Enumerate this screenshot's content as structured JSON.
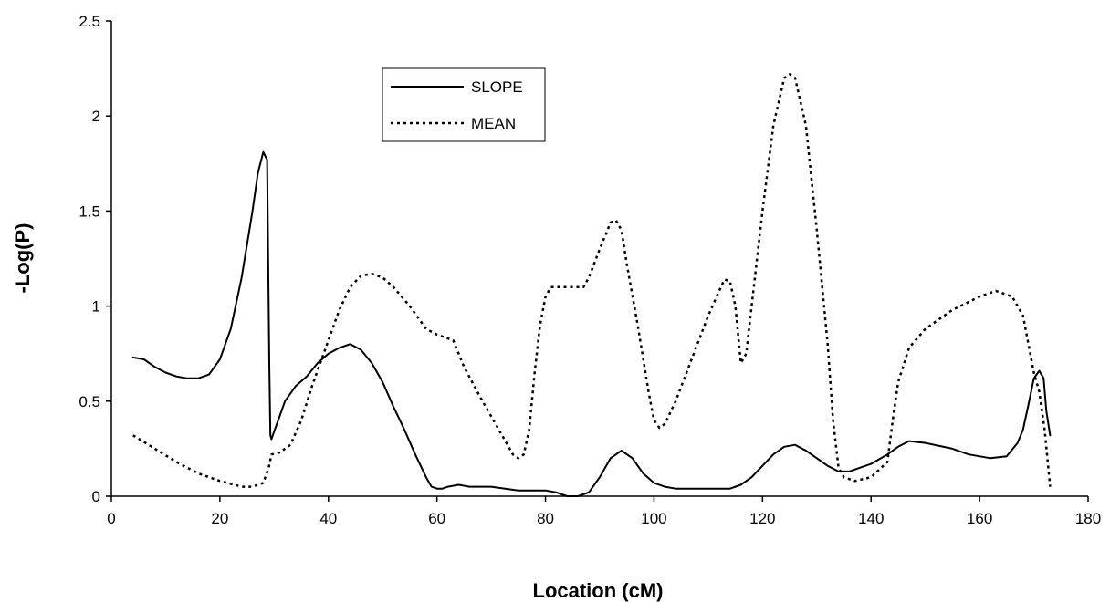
{
  "chart_data": {
    "type": "line",
    "title": "",
    "xlabel": "Location (cM)",
    "ylabel": "-Log(P)",
    "xlim": [
      0,
      180
    ],
    "ylim": [
      0,
      2.5
    ],
    "xticks": [
      "0",
      "20",
      "40",
      "60",
      "80",
      "100",
      "120",
      "140",
      "160",
      "180"
    ],
    "yticks": [
      "0",
      "0.5",
      "1",
      "1.5",
      "2",
      "2.5"
    ],
    "grid": false,
    "legend_position": "top-center",
    "series": [
      {
        "name": "SLOPE",
        "style": "solid",
        "color": "#000000",
        "points": [
          [
            4,
            0.73
          ],
          [
            6,
            0.72
          ],
          [
            8,
            0.68
          ],
          [
            10,
            0.65
          ],
          [
            12,
            0.63
          ],
          [
            14,
            0.62
          ],
          [
            16,
            0.62
          ],
          [
            18,
            0.64
          ],
          [
            20,
            0.72
          ],
          [
            22,
            0.88
          ],
          [
            24,
            1.15
          ],
          [
            26,
            1.5
          ],
          [
            27,
            1.7
          ],
          [
            28,
            1.81
          ],
          [
            28.7,
            1.77
          ],
          [
            29.1,
            0.7
          ],
          [
            29.3,
            0.32
          ],
          [
            29.5,
            0.3
          ],
          [
            30,
            0.34
          ],
          [
            31,
            0.42
          ],
          [
            32,
            0.5
          ],
          [
            34,
            0.58
          ],
          [
            36,
            0.63
          ],
          [
            38,
            0.7
          ],
          [
            40,
            0.75
          ],
          [
            42,
            0.78
          ],
          [
            44,
            0.8
          ],
          [
            46,
            0.77
          ],
          [
            48,
            0.7
          ],
          [
            50,
            0.6
          ],
          [
            52,
            0.47
          ],
          [
            54,
            0.35
          ],
          [
            56,
            0.22
          ],
          [
            58,
            0.1
          ],
          [
            59,
            0.05
          ],
          [
            60,
            0.04
          ],
          [
            61,
            0.04
          ],
          [
            62,
            0.05
          ],
          [
            64,
            0.06
          ],
          [
            66,
            0.05
          ],
          [
            70,
            0.05
          ],
          [
            75,
            0.03
          ],
          [
            80,
            0.03
          ],
          [
            82,
            0.02
          ],
          [
            84,
            0.0
          ],
          [
            86,
            0.0
          ],
          [
            88,
            0.02
          ],
          [
            90,
            0.1
          ],
          [
            92,
            0.2
          ],
          [
            94,
            0.24
          ],
          [
            96,
            0.2
          ],
          [
            98,
            0.12
          ],
          [
            100,
            0.07
          ],
          [
            102,
            0.05
          ],
          [
            104,
            0.04
          ],
          [
            108,
            0.04
          ],
          [
            112,
            0.04
          ],
          [
            114,
            0.04
          ],
          [
            116,
            0.06
          ],
          [
            118,
            0.1
          ],
          [
            120,
            0.16
          ],
          [
            122,
            0.22
          ],
          [
            124,
            0.26
          ],
          [
            126,
            0.27
          ],
          [
            128,
            0.24
          ],
          [
            130,
            0.2
          ],
          [
            132,
            0.16
          ],
          [
            134,
            0.13
          ],
          [
            136,
            0.13
          ],
          [
            138,
            0.15
          ],
          [
            140,
            0.17
          ],
          [
            143,
            0.22
          ],
          [
            145,
            0.26
          ],
          [
            147,
            0.29
          ],
          [
            150,
            0.28
          ],
          [
            155,
            0.25
          ],
          [
            158,
            0.22
          ],
          [
            162,
            0.2
          ],
          [
            165,
            0.21
          ],
          [
            167,
            0.28
          ],
          [
            168,
            0.35
          ],
          [
            169,
            0.48
          ],
          [
            170,
            0.62
          ],
          [
            171,
            0.66
          ],
          [
            171.8,
            0.62
          ],
          [
            172.3,
            0.45
          ],
          [
            173,
            0.32
          ]
        ]
      },
      {
        "name": "MEAN",
        "style": "dotted",
        "color": "#000000",
        "points": [
          [
            4,
            0.32
          ],
          [
            8,
            0.25
          ],
          [
            12,
            0.18
          ],
          [
            16,
            0.12
          ],
          [
            20,
            0.08
          ],
          [
            24,
            0.05
          ],
          [
            26,
            0.05
          ],
          [
            28,
            0.07
          ],
          [
            29,
            0.15
          ],
          [
            29.5,
            0.22
          ],
          [
            31,
            0.23
          ],
          [
            33,
            0.27
          ],
          [
            35,
            0.4
          ],
          [
            37,
            0.58
          ],
          [
            40,
            0.82
          ],
          [
            42,
            0.98
          ],
          [
            44,
            1.1
          ],
          [
            46,
            1.16
          ],
          [
            48,
            1.17
          ],
          [
            50,
            1.15
          ],
          [
            52,
            1.1
          ],
          [
            55,
            1.0
          ],
          [
            58,
            0.88
          ],
          [
            60,
            0.85
          ],
          [
            63,
            0.82
          ],
          [
            65,
            0.68
          ],
          [
            68,
            0.52
          ],
          [
            71,
            0.37
          ],
          [
            74,
            0.22
          ],
          [
            75,
            0.2
          ],
          [
            76,
            0.22
          ],
          [
            77,
            0.35
          ],
          [
            78,
            0.65
          ],
          [
            79,
            0.9
          ],
          [
            80,
            1.05
          ],
          [
            81,
            1.1
          ],
          [
            84,
            1.1
          ],
          [
            87,
            1.1
          ],
          [
            88,
            1.15
          ],
          [
            90,
            1.3
          ],
          [
            92,
            1.44
          ],
          [
            93,
            1.45
          ],
          [
            94,
            1.4
          ],
          [
            95,
            1.22
          ],
          [
            97,
            0.9
          ],
          [
            99,
            0.55
          ],
          [
            100,
            0.4
          ],
          [
            101,
            0.36
          ],
          [
            102,
            0.38
          ],
          [
            104,
            0.5
          ],
          [
            106,
            0.65
          ],
          [
            108,
            0.8
          ],
          [
            110,
            0.95
          ],
          [
            112,
            1.08
          ],
          [
            113,
            1.14
          ],
          [
            114,
            1.13
          ],
          [
            115,
            1.0
          ],
          [
            116,
            0.7
          ],
          [
            117,
            0.75
          ],
          [
            118,
            1.0
          ],
          [
            120,
            1.5
          ],
          [
            122,
            1.95
          ],
          [
            124,
            2.2
          ],
          [
            125,
            2.22
          ],
          [
            126,
            2.2
          ],
          [
            128,
            1.95
          ],
          [
            130,
            1.4
          ],
          [
            132,
            0.8
          ],
          [
            133,
            0.4
          ],
          [
            134,
            0.15
          ],
          [
            135,
            0.1
          ],
          [
            137,
            0.08
          ],
          [
            140,
            0.1
          ],
          [
            143,
            0.18
          ],
          [
            144,
            0.4
          ],
          [
            145,
            0.6
          ],
          [
            147,
            0.78
          ],
          [
            150,
            0.88
          ],
          [
            155,
            0.98
          ],
          [
            160,
            1.05
          ],
          [
            163,
            1.08
          ],
          [
            166,
            1.05
          ],
          [
            168,
            0.95
          ],
          [
            170,
            0.65
          ],
          [
            171,
            0.55
          ],
          [
            172,
            0.35
          ],
          [
            173,
            0.05
          ]
        ]
      }
    ]
  }
}
